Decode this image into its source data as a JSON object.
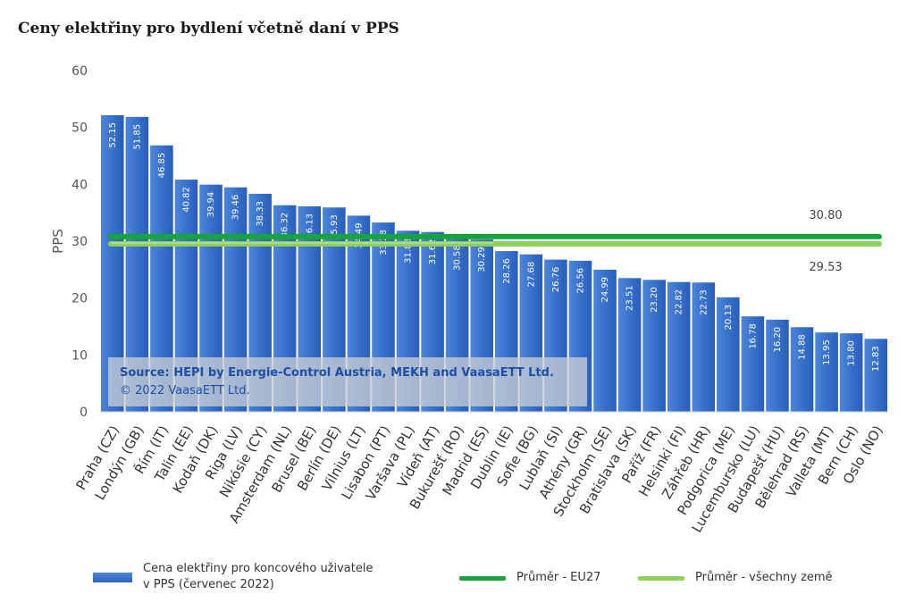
{
  "title": "Ceny elektřiny pro bydlení včetně daní v PPS",
  "colors": {
    "bar": "#2f66c3",
    "bar_light": "#4d86d8",
    "eu27": "#17a43d",
    "all": "#8fd05a",
    "axis_text": "#555555"
  },
  "source_note": {
    "line1": "Source: HEPI by Energie-Control Austria, MEKH and VaasaETT Ltd.",
    "line2": "© 2022 VaasaETT Ltd."
  },
  "legend": {
    "bar_line1": "Cena elektřiny pro koncového uživatele",
    "bar_line2": "v PPS (červenec 2022)",
    "eu27": "Průměr - EU27",
    "all": "Průměr - všechny země"
  },
  "chart_data": {
    "type": "bar",
    "title": "Ceny elektřiny pro bydlení včetně daní v PPS",
    "ylabel": "PPS",
    "xlabel": "",
    "ylim": [
      0,
      60
    ],
    "yticks": [
      0,
      10,
      20,
      30,
      40,
      50,
      60
    ],
    "grid": false,
    "legend_position": "bottom",
    "categories": [
      "Praha (CZ)",
      "Londýn (GB)",
      "Řím (IT)",
      "Talin (EE)",
      "Kodaň (DK)",
      "Riga (LV)",
      "Nikósie (CY)",
      "Amsterdam (NL)",
      "Brusel (BE)",
      "Berlín (DE)",
      "Vilnius (LT)",
      "Lisabon (PT)",
      "Varšava (PL)",
      "Vídeň (AT)",
      "Bukurešť (RO)",
      "Madrid (ES)",
      "Dublin (IE)",
      "Sofie (BG)",
      "Lublaň (SI)",
      "Athény (GR)",
      "Stockholm (SE)",
      "Bratislava (SK)",
      "Paříž (FR)",
      "Helsinki (FI)",
      "Záhřeb (HR)",
      "Podgorica (ME)",
      "Lucembursko (LU)",
      "Budapešť (HU)",
      "Bělehrad (RS)",
      "Valleta (MT)",
      "Bern (CH)",
      "Oslo (NO)"
    ],
    "series": [
      {
        "name": "Cena elektřiny pro koncového uživatele v PPS (červenec 2022)",
        "values": [
          52.15,
          51.85,
          46.85,
          40.82,
          39.94,
          39.46,
          38.33,
          36.32,
          36.13,
          35.93,
          34.49,
          33.28,
          31.83,
          31.62,
          30.58,
          30.29,
          28.26,
          27.68,
          26.76,
          26.56,
          24.99,
          23.51,
          23.2,
          22.82,
          22.73,
          20.13,
          16.78,
          16.2,
          14.88,
          13.95,
          13.8,
          12.83
        ],
        "value_labels": [
          "52.15",
          "51.85",
          "46.85",
          "40.82",
          "39.94",
          "39.46",
          "38.33",
          "36.32",
          "36.13",
          "35.93",
          "34.49",
          "33.28",
          "31.83",
          "31.62",
          "30.58",
          "30.29",
          "28.26",
          "27.68",
          "26.76",
          "26.56",
          "24.99",
          "23.51",
          "23.20",
          "22.82",
          "22.73",
          "20.13",
          "16.78",
          "16.20",
          "14.88",
          "13.95",
          "13.80",
          "12.83"
        ]
      }
    ],
    "reference_lines": [
      {
        "name": "Průměr - EU27",
        "value": 30.8,
        "label": "30.80"
      },
      {
        "name": "Průměr - všechny země",
        "value": 29.53,
        "label": "29.53"
      }
    ]
  }
}
